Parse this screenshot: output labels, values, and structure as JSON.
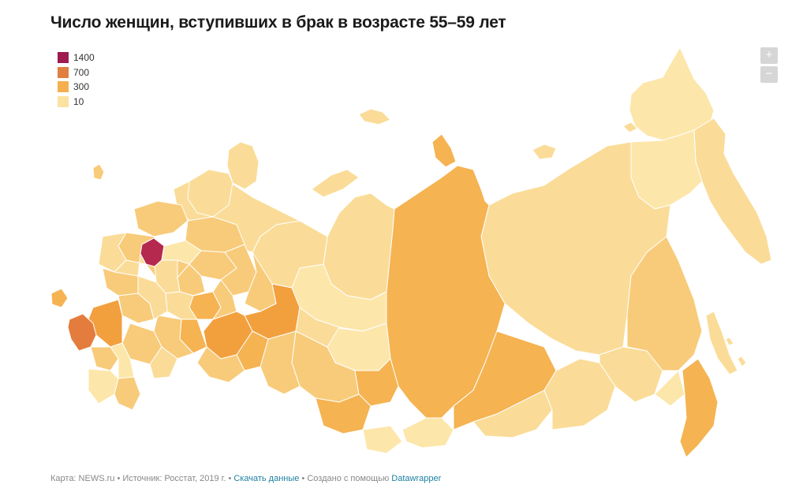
{
  "title": "Число женщин, вступивших в брак в возрасте 55–59 лет",
  "legend": {
    "items": [
      {
        "label": "1400",
        "color": "#9e1a4f"
      },
      {
        "label": "700",
        "color": "#e0803f"
      },
      {
        "label": "300",
        "color": "#f4b04f"
      },
      {
        "label": "10",
        "color": "#fbe2a0"
      }
    ]
  },
  "zoom": {
    "in_label": "+",
    "out_label": "−"
  },
  "map_colors": {
    "moscow": "#b5294e",
    "high": "#e37c3c",
    "mid_high": "#f2a03e",
    "mid": "#f5b352",
    "light_mid": "#f8cb7a",
    "light": "#fadc98",
    "lightest": "#fce6aa",
    "border": "#ffffff"
  },
  "footer": {
    "map_credit": "Карта: NEWS.ru",
    "source": "Источник: Росстат, 2019 г.",
    "download_link": "Скачать данные",
    "created_with": "Создано с помощью",
    "tool_link": "Datawrapper",
    "separator": " • "
  }
}
